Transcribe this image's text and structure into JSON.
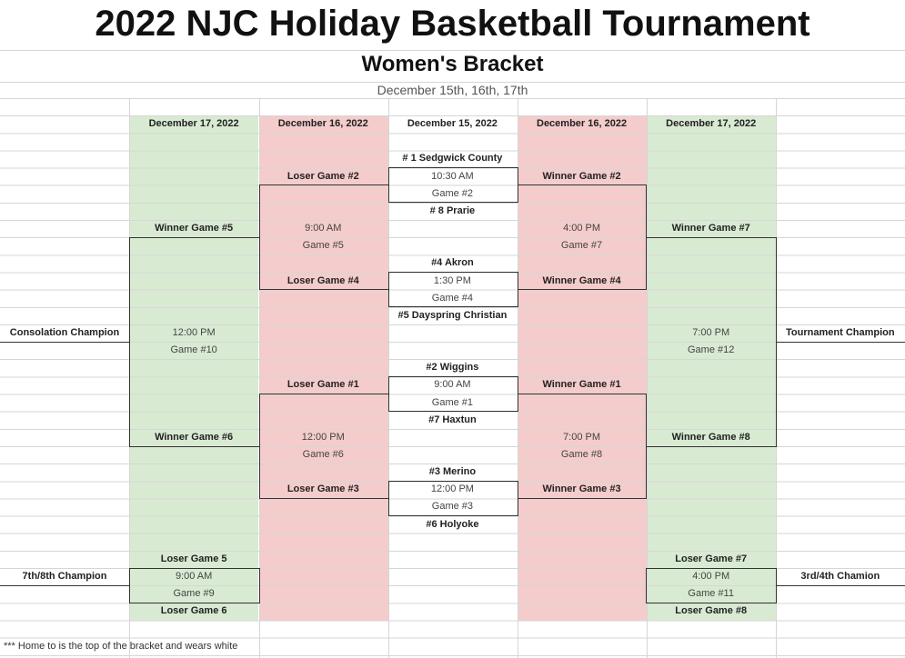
{
  "title": "2022 NJC Holiday Basketball Tournament",
  "subtitle": "Women's Bracket",
  "dates": "December 15th, 16th, 17th",
  "colors": {
    "green": "#d9ead3",
    "pink": "#f4cccc"
  },
  "headers": [
    "December 17, 2022",
    "December 16, 2022",
    "December 15, 2022",
    "December 16, 2022",
    "December 17, 2022"
  ],
  "first_round": [
    {
      "top": "# 1 Sedgwick County",
      "time": "10:30 AM",
      "game": "Game #2",
      "bottom": "# 8 Prarie"
    },
    {
      "top": "#4 Akron",
      "time": "1:30 PM",
      "game": "Game #4",
      "bottom": "#5 Dayspring Christian"
    },
    {
      "top": "#2 Wiggins",
      "time": "9:00 AM",
      "game": "Game #1",
      "bottom": "#7 Haxtun"
    },
    {
      "top": "#3 Merino",
      "time": "12:00 PM",
      "game": "Game #3",
      "bottom": "#6 Holyoke"
    }
  ],
  "consolation": {
    "semi1": {
      "top": "Loser Game #2",
      "time": "9:00 AM",
      "game": "Game #5",
      "bottom": "Loser Game #4"
    },
    "semi2": {
      "top": "Loser Game #1",
      "time": "12:00 PM",
      "game": "Game #6",
      "bottom": "Loser Game #3"
    },
    "final": {
      "top": "Winner Game #5",
      "time": "12:00 PM",
      "game": "Game #10",
      "bottom": "Winner Game #6"
    },
    "champion": "Consolation Champion",
    "seventh": {
      "top": "Loser Game 5",
      "time": "9:00 AM",
      "game": "Game #9",
      "bottom": "Loser Game 6",
      "champion": "7th/8th Champion"
    }
  },
  "championship": {
    "semi1": {
      "top": "Winner Game #2",
      "time": "4:00 PM",
      "game": "Game #7",
      "bottom": "Winner Game #4"
    },
    "semi2": {
      "top": "Winner Game #1",
      "time": "7:00 PM",
      "game": "Game #8",
      "bottom": "Winner Game #3"
    },
    "final": {
      "top": "Winner Game #7",
      "time": "7:00 PM",
      "game": "Game #12",
      "bottom": "Winner Game #8"
    },
    "champion": "Tournament Champion",
    "third": {
      "top": "Loser Game #7",
      "time": "4:00 PM",
      "game": "Game #11",
      "bottom": "Loser Game #8",
      "champion": "3rd/4th Chamion"
    }
  },
  "footnote": "*** Home to is the top of the bracket and wears white"
}
